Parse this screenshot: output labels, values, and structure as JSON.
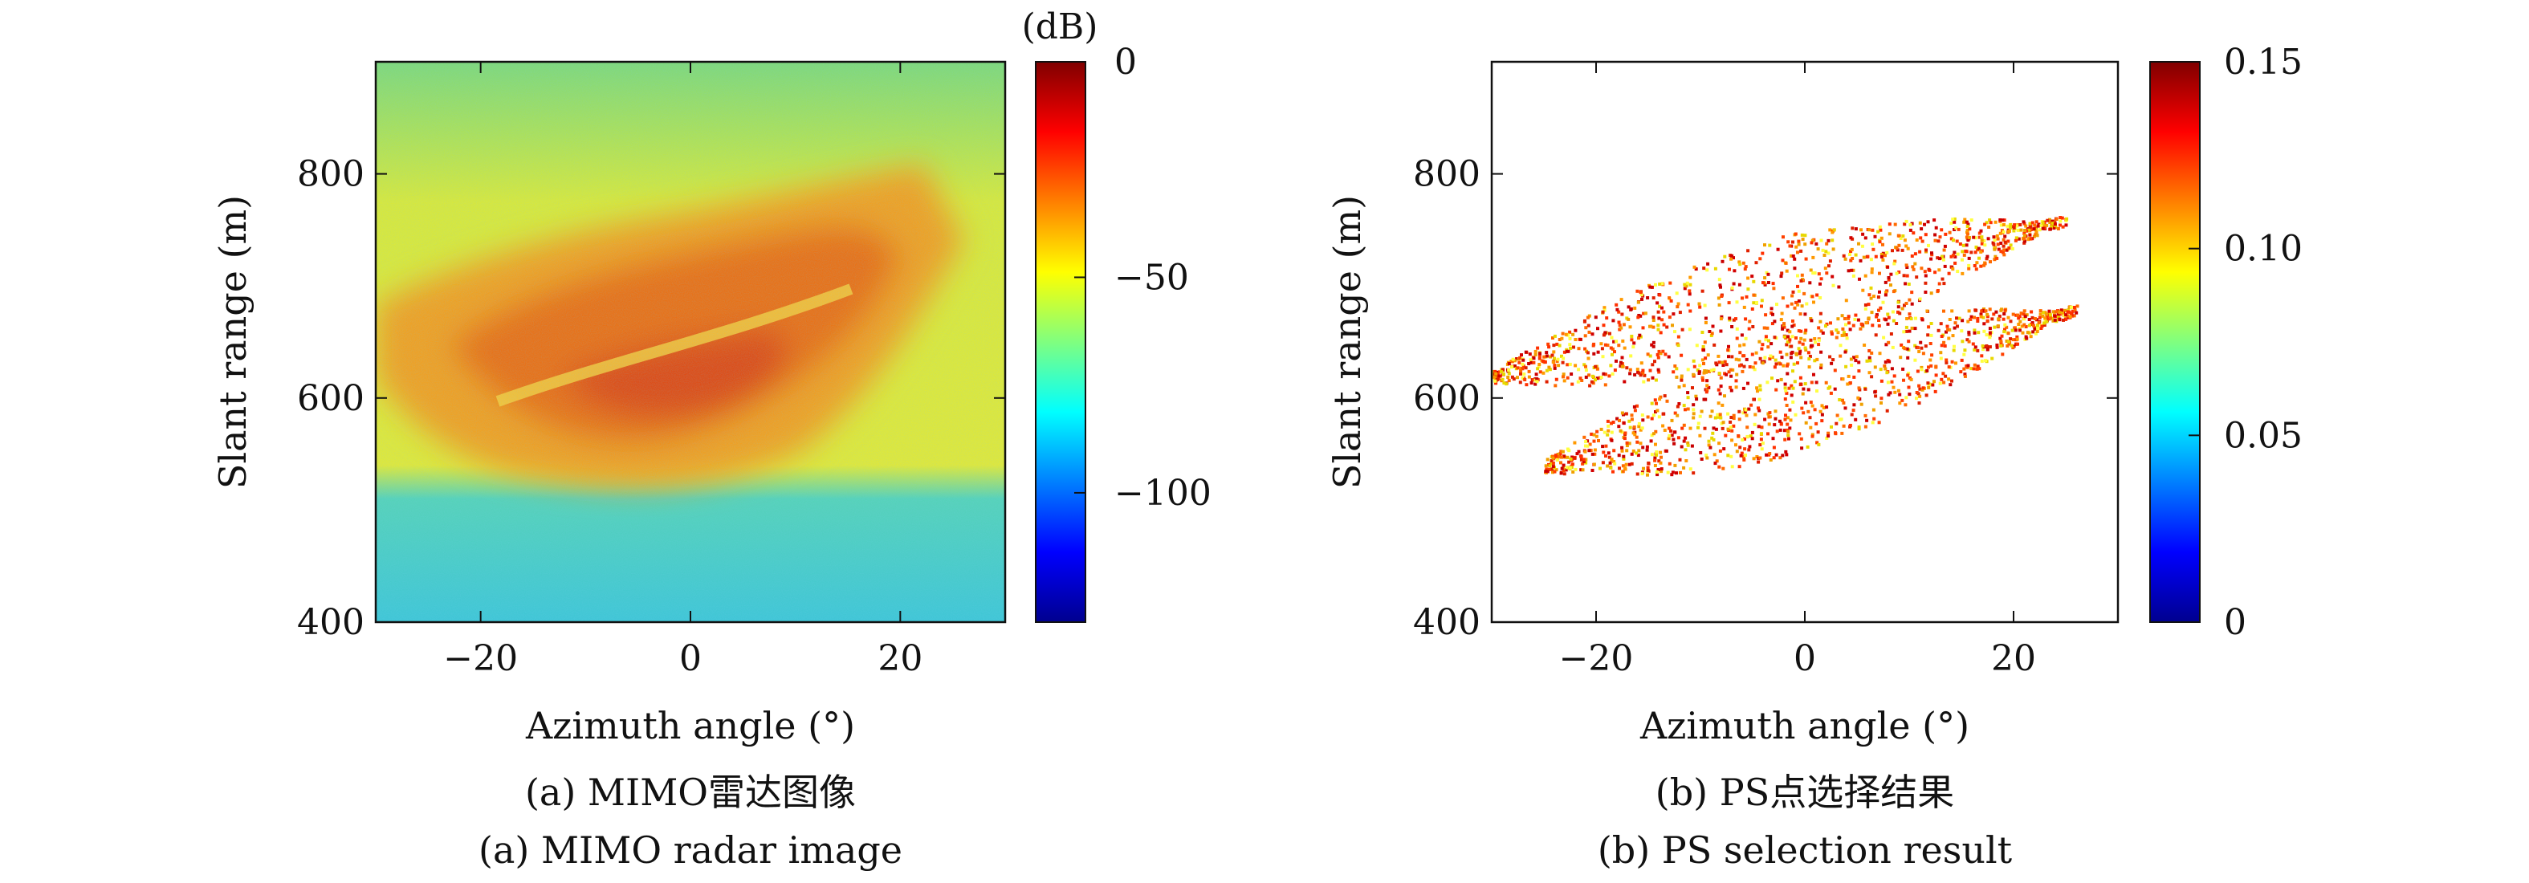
{
  "chart_data": [
    {
      "type": "heatmap",
      "caption_cn": "(a) MIMO雷达图像",
      "caption_en": "(a) MIMO radar image",
      "xlabel": "Azimuth angle (°)",
      "ylabel": "Slant range (m)",
      "xlim": [
        -30,
        30
      ],
      "ylim": [
        400,
        900
      ],
      "xticks": [
        -20,
        0,
        20
      ],
      "yticks": [
        400,
        600,
        800
      ],
      "colorbar": {
        "label": "(dB)",
        "range": [
          -130,
          0
        ],
        "ticks": [
          0,
          -50,
          -100
        ],
        "colormap": "jet"
      },
      "description_levels_db": {
        "background_upper": -55,
        "background_lower": -80,
        "landslide_body": -35,
        "landslide_core": -25
      }
    },
    {
      "type": "scatter",
      "caption_cn": "(b) PS点选择结果",
      "caption_en": "(b) PS selection result",
      "xlabel": "Azimuth angle (°)",
      "ylabel": "Slant range (m)",
      "xlim": [
        -30,
        30
      ],
      "ylim": [
        400,
        900
      ],
      "xticks": [
        -20,
        0,
        20
      ],
      "yticks": [
        400,
        600,
        800
      ],
      "colorbar": {
        "range": [
          0,
          0.15
        ],
        "ticks": [
          "0",
          "0.05",
          "0.10",
          "0.15"
        ],
        "colormap": "jet"
      },
      "regions": [
        {
          "name": "upper-band",
          "x": [
            -30,
            25
          ],
          "y_center": [
            620,
            760
          ]
        },
        {
          "name": "lower-band",
          "x": [
            -25,
            26
          ],
          "y_center": [
            540,
            680
          ]
        }
      ]
    }
  ]
}
